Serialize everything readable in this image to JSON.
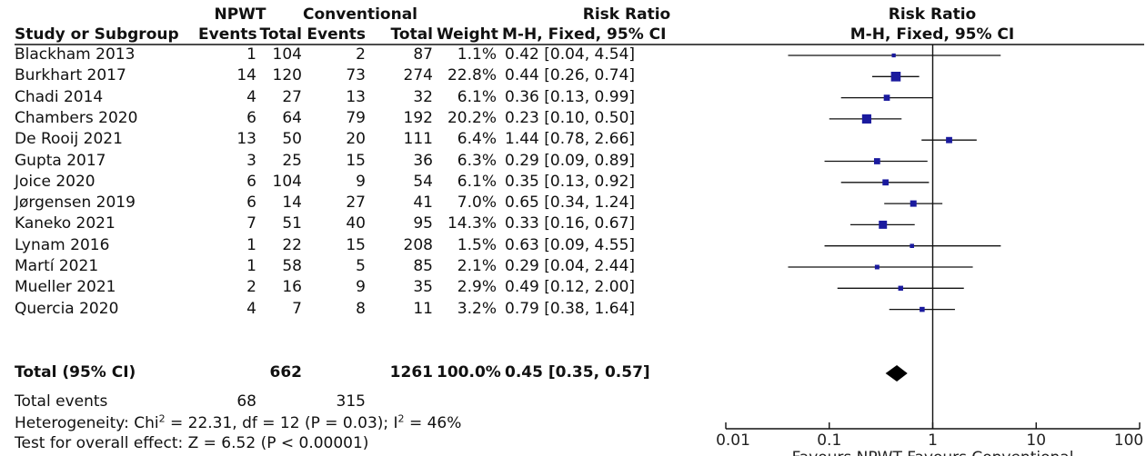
{
  "header": {
    "group1": "NPWT",
    "group2": "Conventional",
    "col_study": "Study or Subgroup",
    "col_events1": "Events",
    "col_total1": "Total",
    "col_events2": "Events",
    "col_total2": "Total",
    "col_weight": "Weight",
    "rr_title": "Risk Ratio",
    "rr_method": "M-H, Fixed, 95% CI",
    "plot_title": "Risk Ratio",
    "plot_method": "M-H, Fixed, 95% CI"
  },
  "studies": [
    {
      "name": "Blackham 2013",
      "e1": "1",
      "t1": "104",
      "e2": "2",
      "t2": "87",
      "weight": "1.1%",
      "ci_text": "0.42 [0.04, 4.54]"
    },
    {
      "name": "Burkhart 2017",
      "e1": "14",
      "t1": "120",
      "e2": "73",
      "t2": "274",
      "weight": "22.8%",
      "ci_text": "0.44 [0.26, 0.74]"
    },
    {
      "name": "Chadi 2014",
      "e1": "4",
      "t1": "27",
      "e2": "13",
      "t2": "32",
      "weight": "6.1%",
      "ci_text": "0.36 [0.13, 0.99]"
    },
    {
      "name": "Chambers 2020",
      "e1": "6",
      "t1": "64",
      "e2": "79",
      "t2": "192",
      "weight": "20.2%",
      "ci_text": "0.23 [0.10, 0.50]"
    },
    {
      "name": "De Rooij 2021",
      "e1": "13",
      "t1": "50",
      "e2": "20",
      "t2": "111",
      "weight": "6.4%",
      "ci_text": "1.44 [0.78, 2.66]"
    },
    {
      "name": "Gupta 2017",
      "e1": "3",
      "t1": "25",
      "e2": "15",
      "t2": "36",
      "weight": "6.3%",
      "ci_text": "0.29 [0.09, 0.89]"
    },
    {
      "name": "Joice 2020",
      "e1": "6",
      "t1": "104",
      "e2": "9",
      "t2": "54",
      "weight": "6.1%",
      "ci_text": "0.35 [0.13, 0.92]"
    },
    {
      "name": "Jørgensen 2019",
      "e1": "6",
      "t1": "14",
      "e2": "27",
      "t2": "41",
      "weight": "7.0%",
      "ci_text": "0.65 [0.34, 1.24]"
    },
    {
      "name": "Kaneko 2021",
      "e1": "7",
      "t1": "51",
      "e2": "40",
      "t2": "95",
      "weight": "14.3%",
      "ci_text": "0.33 [0.16, 0.67]"
    },
    {
      "name": "Lynam 2016",
      "e1": "1",
      "t1": "22",
      "e2": "15",
      "t2": "208",
      "weight": "1.5%",
      "ci_text": "0.63 [0.09, 4.55]"
    },
    {
      "name": "Martí 2021",
      "e1": "1",
      "t1": "58",
      "e2": "5",
      "t2": "85",
      "weight": "2.1%",
      "ci_text": "0.29 [0.04, 2.44]"
    },
    {
      "name": "Mueller 2021",
      "e1": "2",
      "t1": "16",
      "e2": "9",
      "t2": "35",
      "weight": "2.9%",
      "ci_text": "0.49 [0.12, 2.00]"
    },
    {
      "name": "Quercia 2020",
      "e1": "4",
      "t1": "7",
      "e2": "8",
      "t2": "11",
      "weight": "3.2%",
      "ci_text": "0.79 [0.38, 1.64]"
    }
  ],
  "total": {
    "label": "Total (95% CI)",
    "t1": "662",
    "t2": "1261",
    "weight": "100.0%",
    "ci_text": "0.45 [0.35, 0.57]"
  },
  "total_events": {
    "label": "Total events",
    "e1": "68",
    "e2": "315"
  },
  "heterogeneity": {
    "prefix": "Heterogeneity: Chi",
    "sup1": "2",
    "middle": " = 22.31, df = 12 (P = 0.03); I",
    "sup2": "2",
    "suffix": " = 46%"
  },
  "overall": "Test for overall effect: Z = 6.52 (P < 0.00001)",
  "axis": {
    "ticks": [
      "0.01",
      "0.1",
      "1",
      "10",
      "100"
    ],
    "favours": "Favours NPWT  Favours Conventional"
  },
  "colors": {
    "marker": "#1a1a9e",
    "line": "#111111",
    "diamond": "#000000"
  },
  "chart_data": {
    "type": "forest",
    "x_scale": "log",
    "xlim": [
      0.01,
      100
    ],
    "reference_line": 1,
    "points": [
      {
        "study": "Blackham 2013",
        "rr": 0.42,
        "lo": 0.04,
        "hi": 4.54,
        "weight": 1.1
      },
      {
        "study": "Burkhart 2017",
        "rr": 0.44,
        "lo": 0.26,
        "hi": 0.74,
        "weight": 22.8
      },
      {
        "study": "Chadi 2014",
        "rr": 0.36,
        "lo": 0.13,
        "hi": 0.99,
        "weight": 6.1
      },
      {
        "study": "Chambers 2020",
        "rr": 0.23,
        "lo": 0.1,
        "hi": 0.5,
        "weight": 20.2
      },
      {
        "study": "De Rooij 2021",
        "rr": 1.44,
        "lo": 0.78,
        "hi": 2.66,
        "weight": 6.4
      },
      {
        "study": "Gupta 2017",
        "rr": 0.29,
        "lo": 0.09,
        "hi": 0.89,
        "weight": 6.3
      },
      {
        "study": "Joice 2020",
        "rr": 0.35,
        "lo": 0.13,
        "hi": 0.92,
        "weight": 6.1
      },
      {
        "study": "Jørgensen 2019",
        "rr": 0.65,
        "lo": 0.34,
        "hi": 1.24,
        "weight": 7.0
      },
      {
        "study": "Kaneko 2021",
        "rr": 0.33,
        "lo": 0.16,
        "hi": 0.67,
        "weight": 14.3
      },
      {
        "study": "Lynam 2016",
        "rr": 0.63,
        "lo": 0.09,
        "hi": 4.55,
        "weight": 1.5
      },
      {
        "study": "Martí 2021",
        "rr": 0.29,
        "lo": 0.04,
        "hi": 2.44,
        "weight": 2.1
      },
      {
        "study": "Mueller 2021",
        "rr": 0.49,
        "lo": 0.12,
        "hi": 2.0,
        "weight": 2.9
      },
      {
        "study": "Quercia 2020",
        "rr": 0.79,
        "lo": 0.38,
        "hi": 1.64,
        "weight": 3.2
      }
    ],
    "pooled": {
      "rr": 0.45,
      "lo": 0.35,
      "hi": 0.57
    }
  }
}
